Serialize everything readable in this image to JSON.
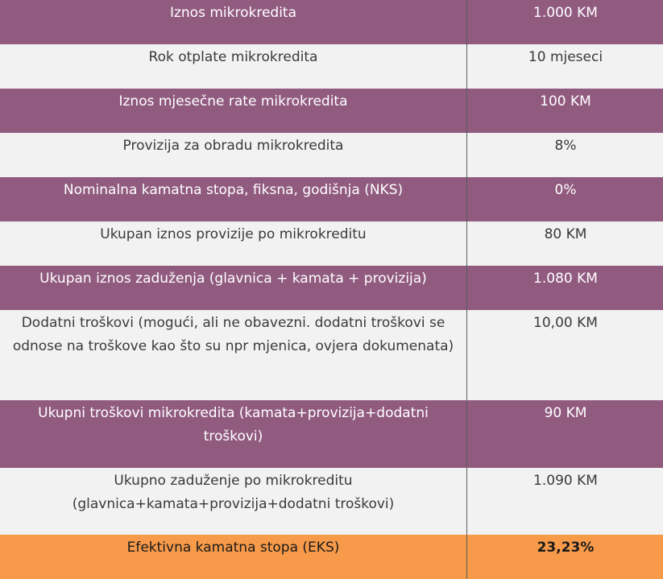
{
  "colors": {
    "purple_row": "#915b80",
    "gray_row": "#f2f2f2",
    "highlight_row": "#f79a4a"
  },
  "rows": [
    {
      "label": "Iznos mikrokredita",
      "value": "1.000 KM"
    },
    {
      "label": "Rok otplate mikrokredita",
      "value": "10 mjeseci"
    },
    {
      "label": "Iznos mjesečne rate mikrokredita",
      "value": "100 KM"
    },
    {
      "label": "Provizija za obradu mikrokredita",
      "value": "8%"
    },
    {
      "label": "Nominalna kamatna stopa, fiksna, godišnja (NKS)",
      "value": "0%"
    },
    {
      "label": "Ukupan iznos provizije po mikrokreditu",
      "value": "80 KM"
    },
    {
      "label": "Ukupan iznos zaduženja (glavnica + kamata + provizija)",
      "value": "1.080 KM"
    },
    {
      "label": "Dodatni troškovi (mogući, ali ne obavezni. dodatni troškovi se odnose na troškove kao što su npr mjenica, ovjera dokumenata)",
      "value": "10,00 KM"
    },
    {
      "label": "Ukupni troškovi mikrokredita (kamata+provizija+dodatni troškovi)",
      "value": "90 KM"
    },
    {
      "label": "Ukupno zaduženje po mikrokreditu (glavnica+kamata+provizija+dodatni troškovi)",
      "value": "1.090 KM"
    },
    {
      "label": "Efektivna kamatna stopa (EKS)",
      "value": "23,23%"
    }
  ]
}
